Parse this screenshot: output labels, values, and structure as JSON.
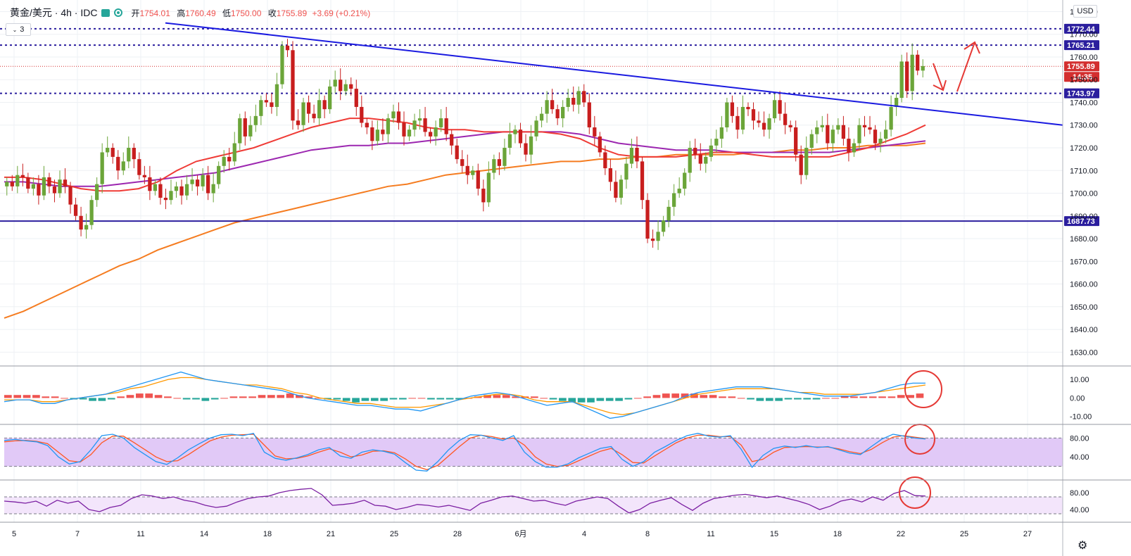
{
  "header": {
    "symbol": "黄金/美元 · 4h · IDC",
    "o_label": "开",
    "o": "1754.01",
    "h_label": "高",
    "h": "1760.49",
    "l_label": "低",
    "l": "1750.00",
    "c_label": "收",
    "c": "1755.89",
    "chg": "+3.69 (+0.21%)"
  },
  "indicator_badge": "3",
  "currency_button": "USD",
  "settings_icon": "gear-icon",
  "chart_data": [
    {
      "type": "candlestick",
      "title": "黄金/美元 · 4h · IDC",
      "x_tick_labels": [
        "5",
        "7",
        "11",
        "14",
        "18",
        "21",
        "25",
        "28",
        "6月",
        "4",
        "8",
        "11",
        "15",
        "18",
        "22",
        "25",
        "27"
      ],
      "y_ticks": [
        1630,
        1640,
        1650,
        1660,
        1670,
        1680,
        1690,
        1700,
        1710,
        1720,
        1730,
        1740,
        1750,
        1760,
        1770,
        1780
      ],
      "ylim": [
        1627,
        1782
      ],
      "candles_close": [
        1705,
        1703,
        1708,
        1707,
        1702,
        1704,
        1699,
        1707,
        1703,
        1700,
        1706,
        1703,
        1695,
        1690,
        1684,
        1686,
        1697,
        1704,
        1718,
        1720,
        1716,
        1710,
        1714,
        1720,
        1715,
        1708,
        1707,
        1701,
        1704,
        1698,
        1697,
        1701,
        1703,
        1699,
        1704,
        1706,
        1703,
        1708,
        1700,
        1704,
        1712,
        1716,
        1714,
        1722,
        1733,
        1725,
        1730,
        1734,
        1741,
        1740,
        1738,
        1748,
        1765,
        1763,
        1732,
        1730,
        1740,
        1735,
        1733,
        1741,
        1737,
        1747,
        1750,
        1745,
        1748,
        1746,
        1738,
        1731,
        1729,
        1723,
        1728,
        1726,
        1733,
        1736,
        1731,
        1725,
        1728,
        1732,
        1733,
        1727,
        1725,
        1729,
        1733,
        1726,
        1721,
        1715,
        1712,
        1708,
        1710,
        1702,
        1696,
        1709,
        1715,
        1712,
        1720,
        1726,
        1728,
        1722,
        1717,
        1725,
        1732,
        1735,
        1741,
        1737,
        1733,
        1738,
        1742,
        1739,
        1745,
        1740,
        1729,
        1725,
        1718,
        1711,
        1705,
        1698,
        1706,
        1713,
        1720,
        1714,
        1697,
        1680,
        1679,
        1683,
        1688,
        1694,
        1700,
        1702,
        1709,
        1720,
        1717,
        1713,
        1716,
        1721,
        1724,
        1729,
        1740,
        1734,
        1728,
        1738,
        1737,
        1732,
        1731,
        1728,
        1733,
        1741,
        1735,
        1730,
        1729,
        1717,
        1708,
        1720,
        1726,
        1729,
        1730,
        1722,
        1728,
        1730,
        1724,
        1718,
        1722,
        1730,
        1729,
        1728,
        1722,
        1724,
        1728,
        1738,
        1742,
        1758,
        1745,
        1761,
        1754,
        1756
      ],
      "ma_lines": [
        {
          "name": "",
          "color": "#f57c20",
          "values": [
            1645,
            1648,
            1652,
            1656,
            1660,
            1664,
            1668,
            1671,
            1675,
            1678,
            1681,
            1684,
            1687,
            1689,
            1691,
            1693,
            1695,
            1697,
            1699,
            1701,
            1703,
            1704,
            1706,
            1708,
            1709,
            1710,
            1711,
            1712,
            1713,
            1714,
            1714,
            1715,
            1715,
            1716,
            1716,
            1717,
            1717,
            1717,
            1717,
            1718,
            1718,
            1719,
            1719,
            1720,
            1720,
            1721,
            1721,
            1721,
            1722
          ]
        },
        {
          "name": "",
          "color": "#9c27b0",
          "values": [
            1705,
            1705,
            1704,
            1703,
            1703,
            1703,
            1704,
            1705,
            1706,
            1707,
            1708,
            1709,
            1711,
            1713,
            1715,
            1717,
            1719,
            1720,
            1721,
            1721,
            1722,
            1722,
            1723,
            1724,
            1725,
            1726,
            1727,
            1727,
            1727,
            1727,
            1726,
            1724,
            1722,
            1721,
            1720,
            1719,
            1719,
            1719,
            1718,
            1718,
            1718,
            1718,
            1718,
            1718,
            1719,
            1720,
            1721,
            1722,
            1723
          ]
        },
        {
          "name": "",
          "color": "#ef3b36",
          "values": [
            1707,
            1707,
            1706,
            1704,
            1702,
            1701,
            1701,
            1702,
            1705,
            1710,
            1714,
            1716,
            1718,
            1720,
            1723,
            1726,
            1729,
            1731,
            1733,
            1733,
            1732,
            1731,
            1729,
            1728,
            1728,
            1727,
            1727,
            1727,
            1727,
            1726,
            1724,
            1720,
            1717,
            1716,
            1716,
            1716,
            1717,
            1718,
            1718,
            1717,
            1716,
            1716,
            1716,
            1716,
            1718,
            1720,
            1723,
            1726,
            1730
          ]
        }
      ],
      "horizontal_levels": [
        {
          "value": 1772.44,
          "label": "1772.44",
          "style": "dotted",
          "color": "#2b1e9e"
        },
        {
          "value": 1765.21,
          "label": "1765.21",
          "style": "dotted",
          "color": "#2b1e9e"
        },
        {
          "value": 1755.89,
          "label": "1755.89",
          "style": "price",
          "color": "#d32f2f"
        },
        {
          "value": 1743.97,
          "label": "1743.97",
          "style": "dotted",
          "color": "#2b1e9e"
        },
        {
          "value": 1687.73,
          "label": "1687.73",
          "style": "solid",
          "color": "#2b1e9e"
        }
      ],
      "countdown_label": "14:35",
      "trendline": {
        "from": 1775,
        "to": 1730,
        "color": "#1a1ae0"
      }
    },
    {
      "type": "macd",
      "y_ticks": [
        "10.00",
        "0.00",
        "-10.00"
      ],
      "ylim": [
        -12,
        15
      ],
      "histogram": [
        2,
        2,
        2,
        2,
        1,
        1,
        0,
        -1,
        -1,
        -2,
        -2,
        -1,
        1,
        2,
        3,
        3,
        2,
        1,
        0,
        -1,
        -1,
        -2,
        -1,
        0,
        1,
        1,
        1,
        2,
        2,
        2,
        3,
        2,
        1,
        0,
        -1,
        -1,
        -2,
        -3,
        -2,
        -2,
        -2,
        -1,
        -1,
        0,
        0,
        -1,
        -1,
        -1,
        -1,
        0,
        1,
        2,
        2,
        2,
        1,
        1,
        1,
        0,
        -1,
        -2,
        -3,
        -3,
        -3,
        -2,
        -2,
        -2,
        -1,
        0,
        1,
        2,
        3,
        3,
        3,
        3,
        2,
        2,
        1,
        1,
        0,
        -1,
        -2,
        -2,
        -2,
        -1,
        -1,
        -1,
        -1,
        0,
        0,
        1,
        1,
        1,
        1,
        1,
        1,
        2,
        2,
        3
      ],
      "macd": [
        -2,
        -1,
        -1,
        -3,
        -3,
        -1,
        0,
        1,
        2,
        4,
        6,
        8,
        10,
        12,
        14,
        12,
        10,
        9,
        8,
        7,
        6,
        5,
        4,
        2,
        0,
        -1,
        -2,
        -3,
        -4,
        -4,
        -5,
        -6,
        -6,
        -7,
        -5,
        -3,
        -1,
        1,
        2,
        3,
        2,
        0,
        -2,
        -4,
        -3,
        -2,
        -5,
        -8,
        -11,
        -10,
        -8,
        -6,
        -4,
        -2,
        1,
        3,
        4,
        5,
        6,
        6,
        6,
        5,
        4,
        3,
        2,
        1,
        1,
        1,
        2,
        3,
        5,
        7,
        8,
        8
      ],
      "signal": [
        -1,
        -1,
        -1,
        -2,
        -2,
        -1,
        0,
        1,
        2,
        3,
        5,
        6,
        8,
        10,
        11,
        11,
        10,
        9,
        8,
        7,
        7,
        6,
        5,
        3,
        2,
        0,
        -1,
        -2,
        -3,
        -3,
        -4,
        -5,
        -5,
        -5,
        -4,
        -3,
        -1,
        0,
        1,
        2,
        2,
        1,
        -1,
        -2,
        -2,
        -2,
        -4,
        -6,
        -8,
        -9,
        -8,
        -6,
        -4,
        -2,
        0,
        2,
        3,
        4,
        5,
        5,
        5,
        5,
        4,
        3,
        3,
        2,
        2,
        2,
        2,
        3,
        4,
        5,
        6,
        7
      ]
    },
    {
      "type": "stochastic",
      "y_ticks": [
        "80.00",
        "40.00"
      ],
      "ylim": [
        0,
        100
      ],
      "band": [
        20,
        80
      ],
      "k": [
        75,
        77,
        74,
        72,
        64,
        40,
        25,
        30,
        55,
        85,
        88,
        80,
        60,
        45,
        30,
        24,
        38,
        55,
        68,
        80,
        87,
        88,
        85,
        90,
        50,
        37,
        33,
        38,
        45,
        55,
        60,
        42,
        37,
        50,
        55,
        52,
        46,
        28,
        12,
        10,
        30,
        55,
        75,
        87,
        86,
        80,
        75,
        85,
        50,
        30,
        18,
        18,
        25,
        38,
        48,
        58,
        62,
        35,
        20,
        30,
        50,
        62,
        75,
        85,
        90,
        84,
        82,
        85,
        56,
        18,
        43,
        58,
        63,
        60,
        64,
        60,
        62,
        55,
        48,
        45,
        62,
        78,
        88,
        84,
        80,
        78
      ],
      "d": [
        72,
        74,
        75,
        73,
        68,
        50,
        32,
        29,
        45,
        70,
        84,
        84,
        70,
        55,
        40,
        30,
        32,
        45,
        60,
        74,
        82,
        86,
        87,
        88,
        65,
        42,
        36,
        37,
        42,
        50,
        57,
        50,
        40,
        44,
        52,
        53,
        49,
        36,
        20,
        13,
        22,
        42,
        62,
        80,
        86,
        83,
        78,
        80,
        65,
        40,
        25,
        20,
        22,
        32,
        42,
        52,
        58,
        45,
        28,
        27,
        42,
        56,
        70,
        80,
        86,
        86,
        83,
        83,
        65,
        30,
        35,
        50,
        60,
        61,
        62,
        61,
        61,
        57,
        51,
        47,
        56,
        70,
        82,
        85,
        82,
        79
      ]
    },
    {
      "type": "rsi",
      "y_ticks": [
        "80.00",
        "40.00"
      ],
      "ylim": [
        20,
        100
      ],
      "band": [
        30,
        70
      ],
      "values": [
        60,
        58,
        55,
        60,
        48,
        62,
        55,
        60,
        40,
        35,
        45,
        50,
        66,
        75,
        72,
        66,
        70,
        62,
        58,
        50,
        45,
        48,
        58,
        66,
        70,
        72,
        80,
        85,
        88,
        90,
        75,
        50,
        52,
        55,
        62,
        50,
        48,
        40,
        45,
        52,
        50,
        46,
        50,
        44,
        38,
        55,
        62,
        70,
        72,
        66,
        60,
        62,
        55,
        50,
        60,
        65,
        70,
        66,
        48,
        32,
        40,
        55,
        62,
        68,
        52,
        38,
        55,
        66,
        70,
        74,
        76,
        72,
        68,
        72,
        66,
        60,
        52,
        40,
        48,
        60,
        65,
        58,
        70,
        62,
        78,
        85,
        73,
        72
      ]
    }
  ]
}
